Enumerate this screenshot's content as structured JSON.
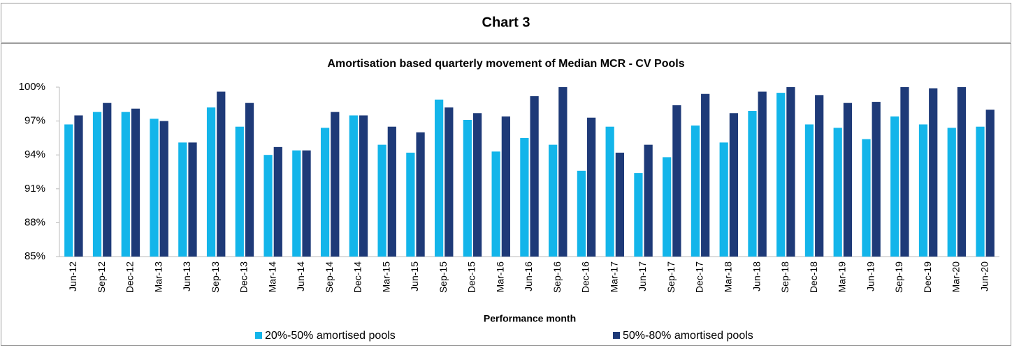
{
  "header": {
    "title": "Chart 3"
  },
  "chart_data": {
    "type": "bar",
    "title": "Amortisation based quarterly movement of Median MCR - CV Pools",
    "x_label": "Performance month",
    "categories": [
      "Jun-12",
      "Sep-12",
      "Dec-12",
      "Mar-13",
      "Jun-13",
      "Sep-13",
      "Dec-13",
      "Mar-14",
      "Jun-14",
      "Sep-14",
      "Dec-14",
      "Mar-15",
      "Jun-15",
      "Sep-15",
      "Dec-15",
      "Mar-16",
      "Jun-16",
      "Sep-16",
      "Dec-16",
      "Mar-17",
      "Jun-17",
      "Sep-17",
      "Dec-17",
      "Mar-18",
      "Jun-18",
      "Sep-18",
      "Dec-18",
      "Mar-19",
      "Jun-19",
      "Sep-19",
      "Dec-19",
      "Mar-20",
      "Jun-20"
    ],
    "series": [
      {
        "name": "20%-50% amortised pools",
        "color": "#13b5ea",
        "values": [
          96.7,
          97.8,
          97.8,
          97.2,
          95.1,
          98.2,
          96.5,
          94.0,
          94.4,
          96.4,
          97.5,
          94.9,
          94.2,
          98.9,
          97.1,
          94.3,
          95.5,
          94.9,
          92.6,
          96.5,
          92.4,
          93.8,
          96.6,
          95.1,
          97.9,
          99.5,
          96.7,
          96.4,
          95.4,
          97.4,
          96.7,
          96.4,
          96.5
        ]
      },
      {
        "name": "50%-80% amortised pools",
        "color": "#1e3a78",
        "values": [
          97.5,
          98.6,
          98.1,
          97.0,
          95.1,
          99.6,
          98.6,
          94.7,
          94.4,
          97.8,
          97.5,
          96.5,
          96.0,
          98.2,
          97.7,
          97.4,
          99.2,
          100,
          97.3,
          94.2,
          94.9,
          98.4,
          99.4,
          97.7,
          99.6,
          100,
          99.3,
          98.6,
          98.7,
          100,
          99.9,
          100,
          98.0
        ]
      }
    ],
    "ylim": [
      85,
      100
    ],
    "yticks": [
      {
        "value": 85,
        "label": "85%"
      },
      {
        "value": 88,
        "label": "88%"
      },
      {
        "value": 91,
        "label": "91%"
      },
      {
        "value": 94,
        "label": "94%"
      },
      {
        "value": 97,
        "label": "97%"
      },
      {
        "value": 100,
        "label": "100%"
      }
    ],
    "grid": false
  }
}
